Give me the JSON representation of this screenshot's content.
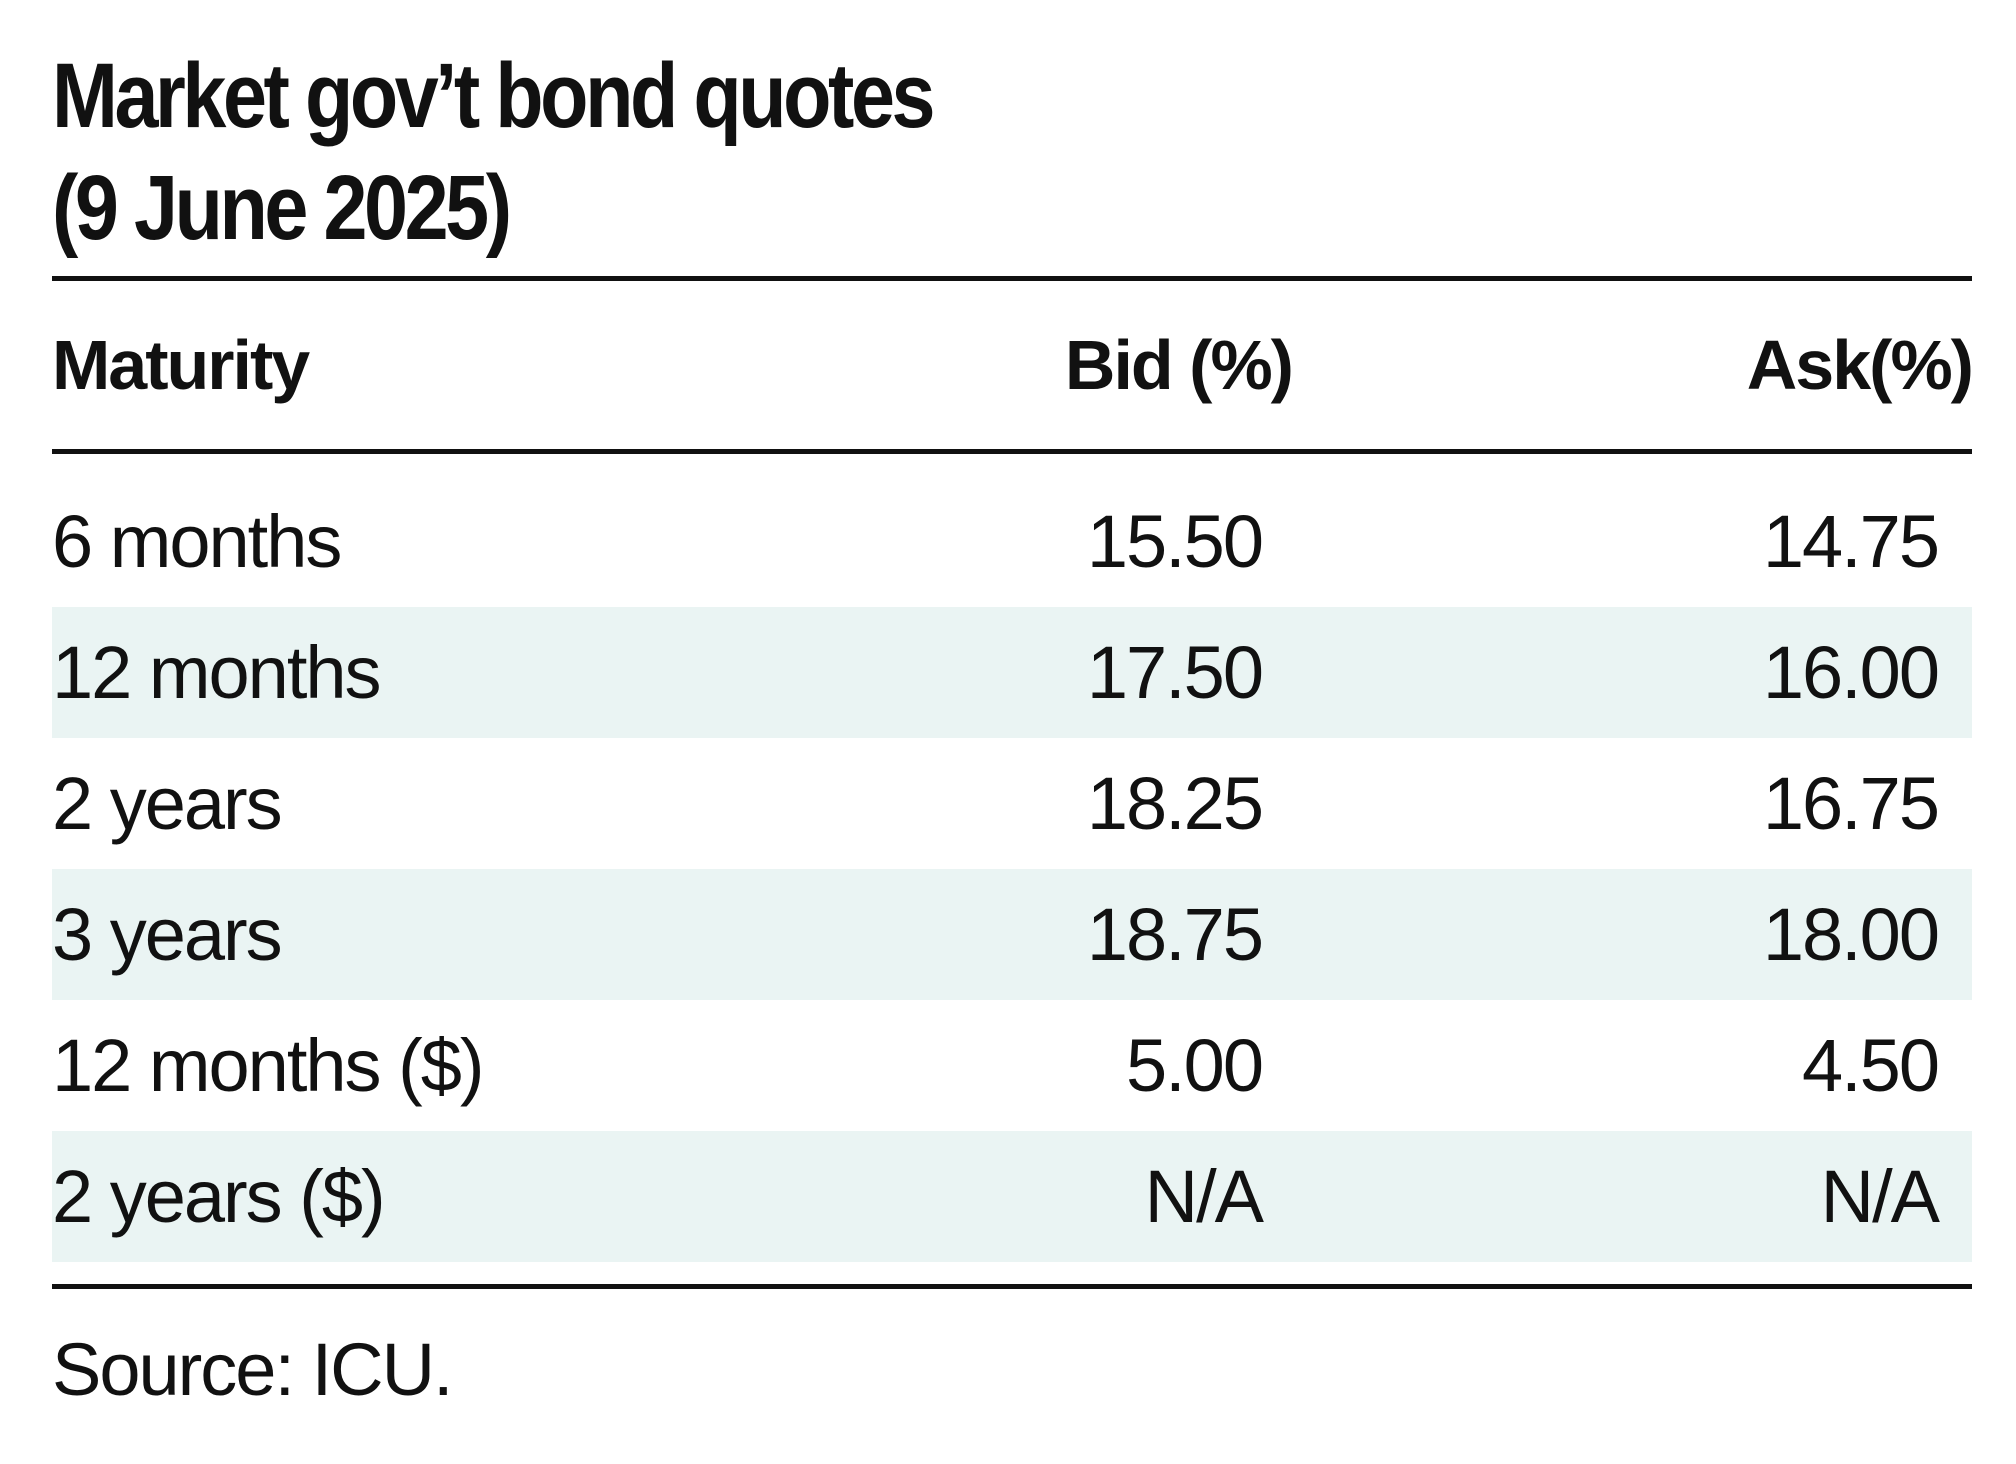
{
  "title_line1": "Market gov’t bond quotes",
  "title_line2": "(9 June 2025)",
  "columns": {
    "maturity": "Maturity",
    "bid": "Bid (%)",
    "ask": "Ask(%)"
  },
  "rows": [
    {
      "maturity": "6 months",
      "bid": "15.50",
      "ask": "14.75"
    },
    {
      "maturity": "12 months",
      "bid": "17.50",
      "ask": "16.00"
    },
    {
      "maturity": "2 years",
      "bid": "18.25",
      "ask": "16.75"
    },
    {
      "maturity": "3 years",
      "bid": "18.75",
      "ask": "18.00"
    },
    {
      "maturity": "12 months ($)",
      "bid": "5.00",
      "ask": "4.50"
    },
    {
      "maturity": "2 years ($)",
      "bid": "N/A",
      "ask": "N/A"
    }
  ],
  "source": "Source: ICU.",
  "colors": {
    "text": "#111111",
    "row_shade": "#eaf4f3",
    "rule": "#111111"
  },
  "chart_data": {
    "type": "table",
    "title": "Market gov’t bond quotes (9 June 2025)",
    "headers": [
      "Maturity",
      "Bid (%)",
      "Ask(%)"
    ],
    "rows": [
      [
        "6 months",
        "15.50",
        "14.75"
      ],
      [
        "12 months",
        "17.50",
        "16.00"
      ],
      [
        "2 years",
        "18.25",
        "16.75"
      ],
      [
        "3 years",
        "18.75",
        "18.00"
      ],
      [
        "12 months ($)",
        "5.00",
        "4.50"
      ],
      [
        "2 years ($)",
        "N/A",
        "N/A"
      ]
    ],
    "source": "Source: ICU."
  }
}
